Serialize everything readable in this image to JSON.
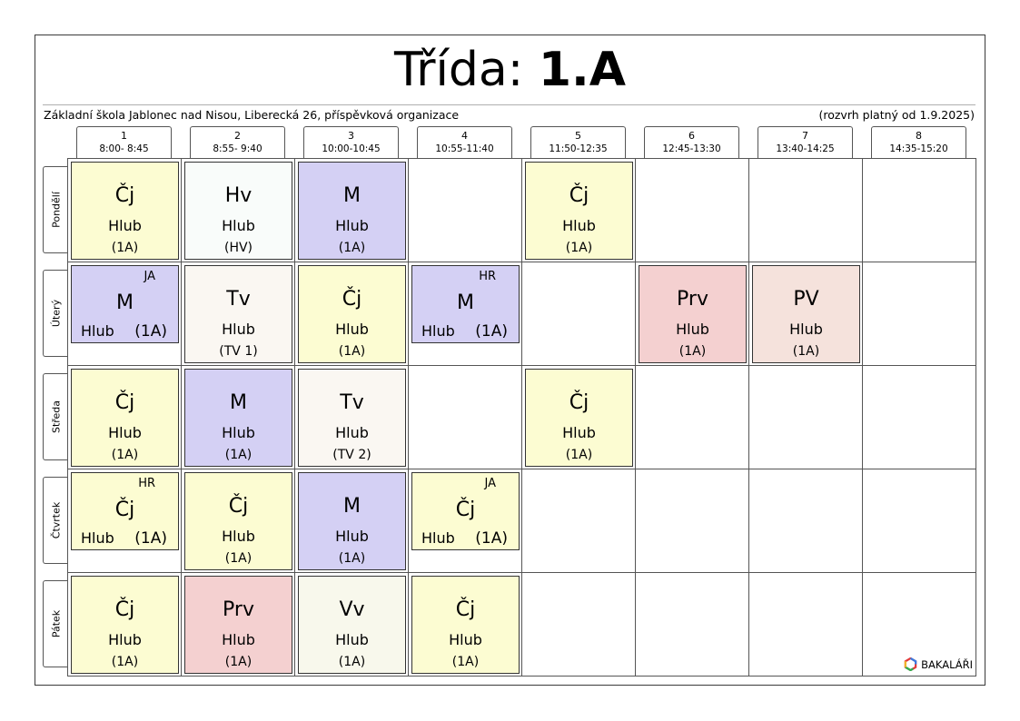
{
  "header": {
    "title_label": "Třída:",
    "class_name": "1.A",
    "school": "Základní škola Jablonec nad Nisou, Liberecká 26, příspěvková organizace",
    "validity": "(rozvrh platný od 1.9.2025)"
  },
  "periods": [
    {
      "num": "1",
      "time": "8:00- 8:45"
    },
    {
      "num": "2",
      "time": "8:55- 9:40"
    },
    {
      "num": "3",
      "time": "10:00-10:45"
    },
    {
      "num": "4",
      "time": "10:55-11:40"
    },
    {
      "num": "5",
      "time": "11:50-12:35"
    },
    {
      "num": "6",
      "time": "12:45-13:30"
    },
    {
      "num": "7",
      "time": "13:40-14:25"
    },
    {
      "num": "8",
      "time": "14:35-15:20"
    }
  ],
  "days": [
    "Pondělí",
    "Úterý",
    "Středa",
    "Čtvrtek",
    "Pátek"
  ],
  "lessons": {
    "mon": [
      {
        "subject": "Čj",
        "teacher": "Hlub",
        "group": "(1A)",
        "color": "#fcfcd2"
      },
      {
        "subject": "Hv",
        "teacher": "Hlub",
        "group": "(HV)",
        "color": "#f9fcfa"
      },
      {
        "subject": "M",
        "teacher": "Hlub",
        "group": "(1A)",
        "color": "#d4d0f4"
      },
      {
        "subject": "Čj",
        "teacher": "Hlub",
        "group": "(1A)",
        "color": "#fcfcd2"
      }
    ],
    "tue": [
      {
        "subject": "M",
        "teacher": "Hlub",
        "group": "(1A)",
        "room": "JA",
        "color": "#d4d0f4"
      },
      {
        "subject": "Tv",
        "teacher": "Hlub",
        "group": "(TV 1)",
        "color": "#faf7f2"
      },
      {
        "subject": "Čj",
        "teacher": "Hlub",
        "group": "(1A)",
        "color": "#fcfcd2"
      },
      {
        "subject": "M",
        "teacher": "Hlub",
        "group": "(1A)",
        "room": "HR",
        "color": "#d4d0f4"
      },
      {
        "subject": "Prv",
        "teacher": "Hlub",
        "group": "(1A)",
        "color": "#f4d0d0"
      },
      {
        "subject": "PV",
        "teacher": "Hlub",
        "group": "(1A)",
        "color": "#f5e2dc"
      }
    ],
    "wed": [
      {
        "subject": "Čj",
        "teacher": "Hlub",
        "group": "(1A)",
        "color": "#fcfcd2"
      },
      {
        "subject": "M",
        "teacher": "Hlub",
        "group": "(1A)",
        "color": "#d4d0f4"
      },
      {
        "subject": "Tv",
        "teacher": "Hlub",
        "group": "(TV 2)",
        "color": "#faf7f2"
      },
      {
        "subject": "Čj",
        "teacher": "Hlub",
        "group": "(1A)",
        "color": "#fcfcd2"
      }
    ],
    "thu": [
      {
        "subject": "Čj",
        "teacher": "Hlub",
        "group": "(1A)",
        "room": "HR",
        "color": "#fcfcd2"
      },
      {
        "subject": "Čj",
        "teacher": "Hlub",
        "group": "(1A)",
        "color": "#fcfcd2"
      },
      {
        "subject": "M",
        "teacher": "Hlub",
        "group": "(1A)",
        "color": "#d4d0f4"
      },
      {
        "subject": "Čj",
        "teacher": "Hlub",
        "group": "(1A)",
        "room": "JA",
        "color": "#fcfcd2"
      }
    ],
    "fri": [
      {
        "subject": "Čj",
        "teacher": "Hlub",
        "group": "(1A)",
        "color": "#fcfcd2"
      },
      {
        "subject": "Prv",
        "teacher": "Hlub",
        "group": "(1A)",
        "color": "#f4d0d0"
      },
      {
        "subject": "Vv",
        "teacher": "Hlub",
        "group": "(1A)",
        "color": "#f8f8ec"
      },
      {
        "subject": "Čj",
        "teacher": "Hlub",
        "group": "(1A)",
        "color": "#fcfcd2"
      }
    ]
  },
  "logo_text": "BAKALÁŘI"
}
